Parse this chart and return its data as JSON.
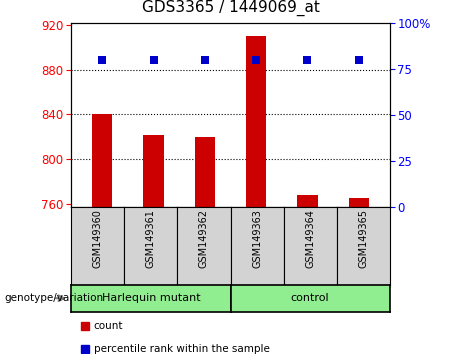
{
  "title": "GDS3365 / 1449069_at",
  "samples": [
    "GSM149360",
    "GSM149361",
    "GSM149362",
    "GSM149363",
    "GSM149364",
    "GSM149365"
  ],
  "bar_values": [
    840,
    822,
    820,
    910,
    768,
    765
  ],
  "bar_bottom": 757,
  "percentile_values": [
    80,
    80,
    80,
    80,
    80,
    80
  ],
  "bar_color": "#cc0000",
  "percentile_color": "#0000cc",
  "ylim_left": [
    757,
    922
  ],
  "ylim_right": [
    0,
    100
  ],
  "yticks_left": [
    760,
    800,
    840,
    880,
    920
  ],
  "yticks_right": [
    0,
    25,
    50,
    75,
    100
  ],
  "ytick_labels_right": [
    "0",
    "25",
    "50",
    "75",
    "100%"
  ],
  "grid_values": [
    880,
    840,
    800
  ],
  "groups": [
    {
      "label": "Harlequin mutant",
      "indices": [
        0,
        1,
        2
      ],
      "color": "#90ee90"
    },
    {
      "label": "control",
      "indices": [
        3,
        4,
        5
      ],
      "color": "#90ee90"
    }
  ],
  "group_row_label": "genotype/variation",
  "legend_items": [
    {
      "label": "count",
      "color": "#cc0000"
    },
    {
      "label": "percentile rank within the sample",
      "color": "#0000cc"
    }
  ],
  "sample_cell_color": "#d3d3d3",
  "bg_color": "#ffffff",
  "title_fontsize": 11,
  "tick_fontsize": 8.5,
  "label_fontsize": 8.5
}
